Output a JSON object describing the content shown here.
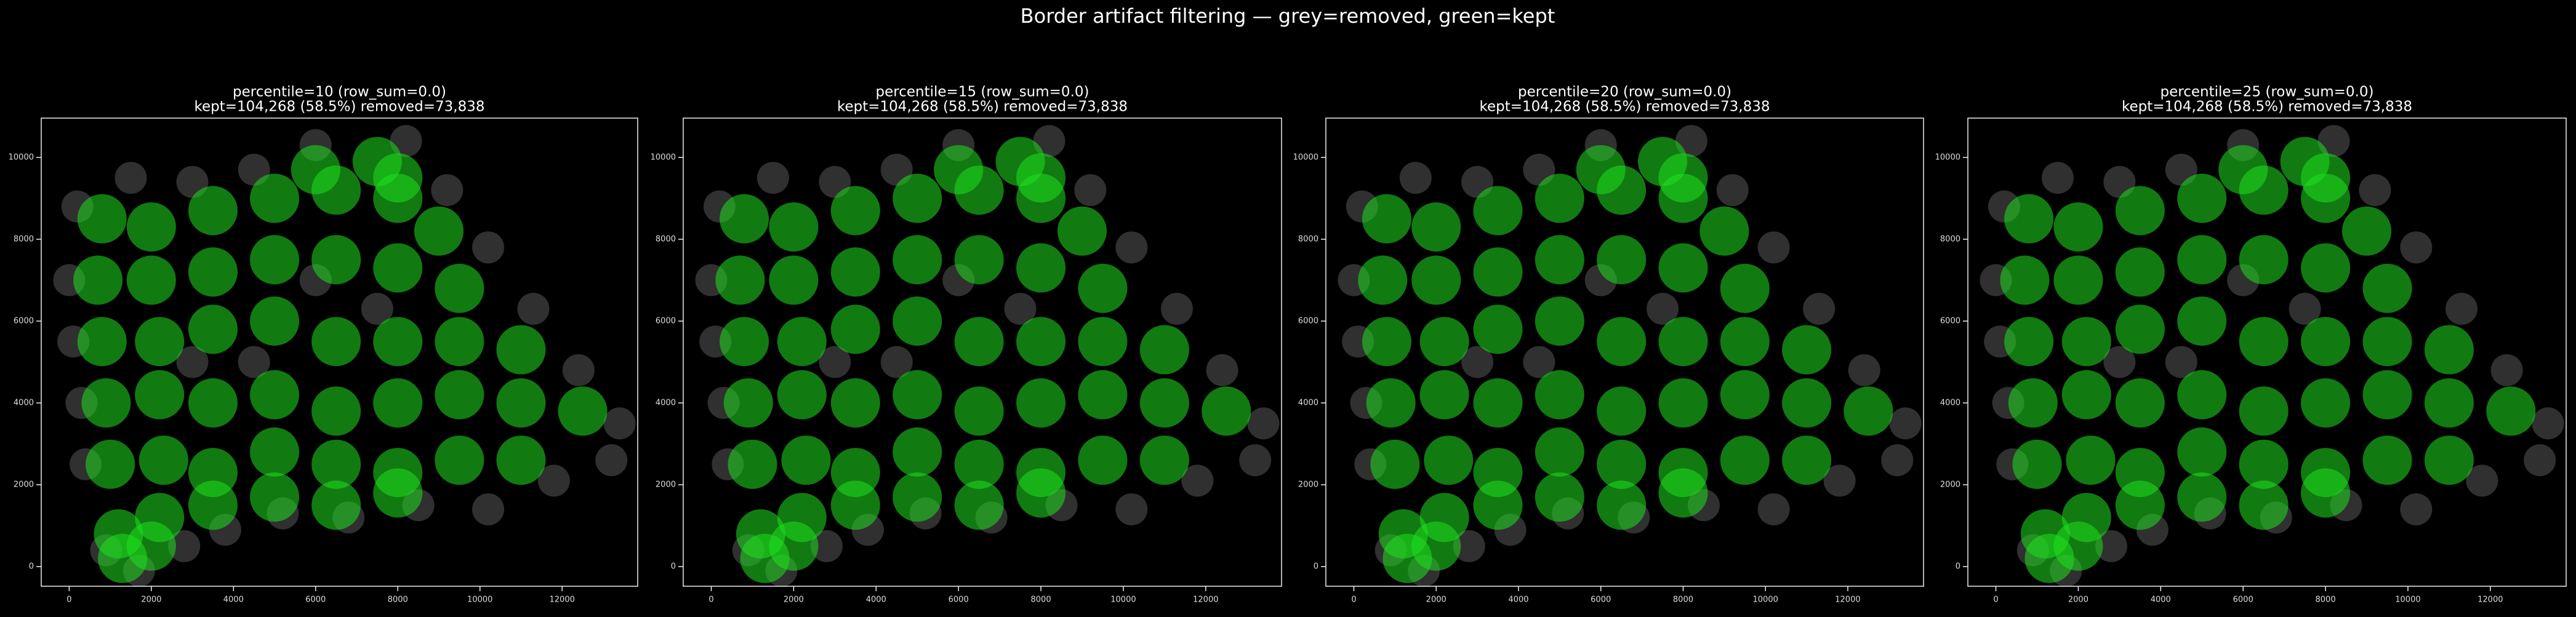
{
  "title": "Border artifact filtering — grey=removed, green=kept",
  "chart_data": [
    {
      "type": "scatter",
      "title": [
        "percentile=10  (row_sum=0.0)",
        "kept=104,268 (58.5%)  removed=73,838"
      ],
      "xlim": [
        -680,
        13840
      ],
      "ylim": [
        -480,
        10960
      ],
      "xticks": [
        0,
        2000,
        4000,
        6000,
        8000,
        10000,
        12000
      ],
      "yticks": [
        0,
        2000,
        4000,
        6000,
        8000,
        10000
      ],
      "series": [
        {
          "color": "#8a8a8a",
          "x": [
            100,
            0,
            200,
            1500,
            3000,
            4500,
            6000,
            8200,
            9200,
            10200,
            11300,
            12400,
            13400,
            13200,
            11800,
            10200,
            8500,
            6800,
            5200,
            3800,
            2800,
            1700,
            900,
            400,
            300,
            4500,
            3000,
            6000,
            7500
          ],
          "values": [
            5500,
            7000,
            8800,
            9500,
            9400,
            9700,
            10300,
            10400,
            9200,
            7800,
            6300,
            4800,
            3500,
            2600,
            2100,
            1400,
            1500,
            1200,
            1300,
            900,
            500,
            -100,
            400,
            2500,
            4000,
            5000,
            5000,
            7000,
            6300
          ]
        },
        {
          "color": "#1fe01f",
          "x": [
            6000,
            7500,
            8000,
            800,
            2000,
            3500,
            5000,
            6500,
            8000,
            9000,
            700,
            2000,
            3500,
            5000,
            6500,
            8000,
            9500,
            800,
            2200,
            3500,
            5000,
            6500,
            8000,
            9500,
            11000,
            900,
            2200,
            3500,
            5000,
            6500,
            8000,
            9500,
            11000,
            12500,
            1000,
            2300,
            3500,
            5000,
            6500,
            8000,
            9500,
            11000,
            1200,
            2200,
            3500,
            5000,
            6500,
            8000,
            1300,
            2000
          ],
          "values": [
            9700,
            9900,
            9500,
            8500,
            8300,
            8700,
            9000,
            9200,
            9000,
            8200,
            7000,
            7000,
            7200,
            7500,
            7500,
            7300,
            6800,
            5500,
            5500,
            5800,
            6000,
            5500,
            5500,
            5500,
            5300,
            4000,
            4200,
            4000,
            4200,
            3800,
            4000,
            4200,
            4000,
            3800,
            2500,
            2600,
            2300,
            2800,
            2500,
            2300,
            2600,
            2600,
            800,
            1200,
            1500,
            1700,
            1500,
            1800,
            200,
            500
          ]
        }
      ]
    },
    {
      "type": "scatter",
      "title": [
        "percentile=15  (row_sum=0.0)",
        "kept=104,268 (58.5%)  removed=73,838"
      ],
      "xlim": [
        -680,
        13840
      ],
      "ylim": [
        -480,
        10960
      ],
      "xticks": [
        0,
        2000,
        4000,
        6000,
        8000,
        10000,
        12000
      ],
      "yticks": [
        0,
        2000,
        4000,
        6000,
        8000,
        10000
      ],
      "series": [
        {
          "color": "#8a8a8a",
          "x": [
            100,
            0,
            200,
            1500,
            3000,
            4500,
            6000,
            8200,
            9200,
            10200,
            11300,
            12400,
            13400,
            13200,
            11800,
            10200,
            8500,
            6800,
            5200,
            3800,
            2800,
            1700,
            900,
            400,
            300,
            4500,
            3000,
            6000,
            7500
          ],
          "values": [
            5500,
            7000,
            8800,
            9500,
            9400,
            9700,
            10300,
            10400,
            9200,
            7800,
            6300,
            4800,
            3500,
            2600,
            2100,
            1400,
            1500,
            1200,
            1300,
            900,
            500,
            -100,
            400,
            2500,
            4000,
            5000,
            5000,
            7000,
            6300
          ]
        },
        {
          "color": "#1fe01f",
          "x": [
            6000,
            7500,
            8000,
            800,
            2000,
            3500,
            5000,
            6500,
            8000,
            9000,
            700,
            2000,
            3500,
            5000,
            6500,
            8000,
            9500,
            800,
            2200,
            3500,
            5000,
            6500,
            8000,
            9500,
            11000,
            900,
            2200,
            3500,
            5000,
            6500,
            8000,
            9500,
            11000,
            12500,
            1000,
            2300,
            3500,
            5000,
            6500,
            8000,
            9500,
            11000,
            1200,
            2200,
            3500,
            5000,
            6500,
            8000,
            1300,
            2000
          ],
          "values": [
            9700,
            9900,
            9500,
            8500,
            8300,
            8700,
            9000,
            9200,
            9000,
            8200,
            7000,
            7000,
            7200,
            7500,
            7500,
            7300,
            6800,
            5500,
            5500,
            5800,
            6000,
            5500,
            5500,
            5500,
            5300,
            4000,
            4200,
            4000,
            4200,
            3800,
            4000,
            4200,
            4000,
            3800,
            2500,
            2600,
            2300,
            2800,
            2500,
            2300,
            2600,
            2600,
            800,
            1200,
            1500,
            1700,
            1500,
            1800,
            200,
            500
          ]
        }
      ]
    },
    {
      "type": "scatter",
      "title": [
        "percentile=20  (row_sum=0.0)",
        "kept=104,268 (58.5%)  removed=73,838"
      ],
      "xlim": [
        -680,
        13840
      ],
      "ylim": [
        -480,
        10960
      ],
      "xticks": [
        0,
        2000,
        4000,
        6000,
        8000,
        10000,
        12000
      ],
      "yticks": [
        0,
        2000,
        4000,
        6000,
        8000,
        10000
      ],
      "series": [
        {
          "color": "#8a8a8a",
          "x": [
            100,
            0,
            200,
            1500,
            3000,
            4500,
            6000,
            8200,
            9200,
            10200,
            11300,
            12400,
            13400,
            13200,
            11800,
            10200,
            8500,
            6800,
            5200,
            3800,
            2800,
            1700,
            900,
            400,
            300,
            4500,
            3000,
            6000,
            7500
          ],
          "values": [
            5500,
            7000,
            8800,
            9500,
            9400,
            9700,
            10300,
            10400,
            9200,
            7800,
            6300,
            4800,
            3500,
            2600,
            2100,
            1400,
            1500,
            1200,
            1300,
            900,
            500,
            -100,
            400,
            2500,
            4000,
            5000,
            5000,
            7000,
            6300
          ]
        },
        {
          "color": "#1fe01f",
          "x": [
            6000,
            7500,
            8000,
            800,
            2000,
            3500,
            5000,
            6500,
            8000,
            9000,
            700,
            2000,
            3500,
            5000,
            6500,
            8000,
            9500,
            800,
            2200,
            3500,
            5000,
            6500,
            8000,
            9500,
            11000,
            900,
            2200,
            3500,
            5000,
            6500,
            8000,
            9500,
            11000,
            12500,
            1000,
            2300,
            3500,
            5000,
            6500,
            8000,
            9500,
            11000,
            1200,
            2200,
            3500,
            5000,
            6500,
            8000,
            1300,
            2000
          ],
          "values": [
            9700,
            9900,
            9500,
            8500,
            8300,
            8700,
            9000,
            9200,
            9000,
            8200,
            7000,
            7000,
            7200,
            7500,
            7500,
            7300,
            6800,
            5500,
            5500,
            5800,
            6000,
            5500,
            5500,
            5500,
            5300,
            4000,
            4200,
            4000,
            4200,
            3800,
            4000,
            4200,
            4000,
            3800,
            2500,
            2600,
            2300,
            2800,
            2500,
            2300,
            2600,
            2600,
            800,
            1200,
            1500,
            1700,
            1500,
            1800,
            200,
            500
          ]
        }
      ]
    },
    {
      "type": "scatter",
      "title": [
        "percentile=25  (row_sum=0.0)",
        "kept=104,268 (58.5%)  removed=73,838"
      ],
      "xlim": [
        -680,
        13840
      ],
      "ylim": [
        -480,
        10960
      ],
      "xticks": [
        0,
        2000,
        4000,
        6000,
        8000,
        10000,
        12000
      ],
      "yticks": [
        0,
        2000,
        4000,
        6000,
        8000,
        10000
      ],
      "series": [
        {
          "color": "#8a8a8a",
          "x": [
            100,
            0,
            200,
            1500,
            3000,
            4500,
            6000,
            8200,
            9200,
            10200,
            11300,
            12400,
            13400,
            13200,
            11800,
            10200,
            8500,
            6800,
            5200,
            3800,
            2800,
            1700,
            900,
            400,
            300,
            4500,
            3000,
            6000,
            7500
          ],
          "values": [
            5500,
            7000,
            8800,
            9500,
            9400,
            9700,
            10300,
            10400,
            9200,
            7800,
            6300,
            4800,
            3500,
            2600,
            2100,
            1400,
            1500,
            1200,
            1300,
            900,
            500,
            -100,
            400,
            2500,
            4000,
            5000,
            5000,
            7000,
            6300
          ]
        },
        {
          "color": "#1fe01f",
          "x": [
            6000,
            7500,
            8000,
            800,
            2000,
            3500,
            5000,
            6500,
            8000,
            9000,
            700,
            2000,
            3500,
            5000,
            6500,
            8000,
            9500,
            800,
            2200,
            3500,
            5000,
            6500,
            8000,
            9500,
            11000,
            900,
            2200,
            3500,
            5000,
            6500,
            8000,
            9500,
            11000,
            12500,
            1000,
            2300,
            3500,
            5000,
            6500,
            8000,
            9500,
            11000,
            1200,
            2200,
            3500,
            5000,
            6500,
            8000,
            1300,
            2000
          ],
          "values": [
            9700,
            9900,
            9500,
            8500,
            8300,
            8700,
            9000,
            9200,
            9000,
            8200,
            7000,
            7000,
            7200,
            7500,
            7500,
            7300,
            6800,
            5500,
            5500,
            5800,
            6000,
            5500,
            5500,
            5500,
            5300,
            4000,
            4200,
            4000,
            4200,
            3800,
            4000,
            4200,
            4000,
            3800,
            2500,
            2600,
            2300,
            2800,
            2500,
            2300,
            2600,
            2600,
            800,
            1200,
            1500,
            1700,
            1500,
            1800,
            200,
            500
          ]
        }
      ]
    }
  ]
}
